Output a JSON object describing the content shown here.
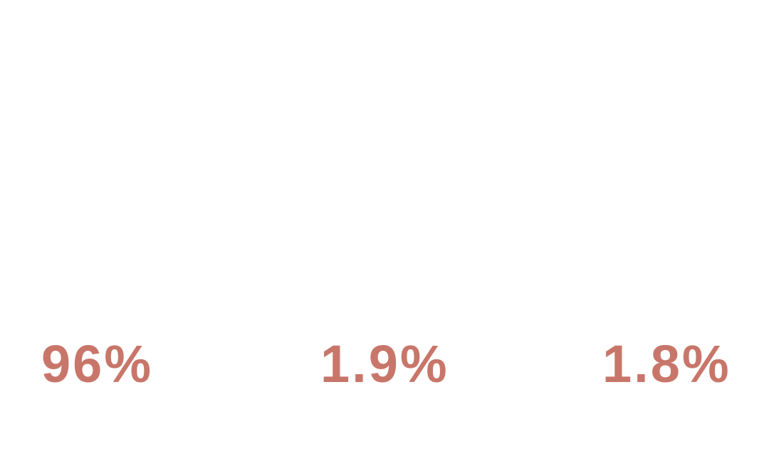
{
  "colors": {
    "accent": "#c8766a",
    "background": "#ffffff"
  },
  "stats": [
    {
      "value": "96%"
    },
    {
      "value": "1.9%"
    },
    {
      "value": "1.8%"
    }
  ]
}
